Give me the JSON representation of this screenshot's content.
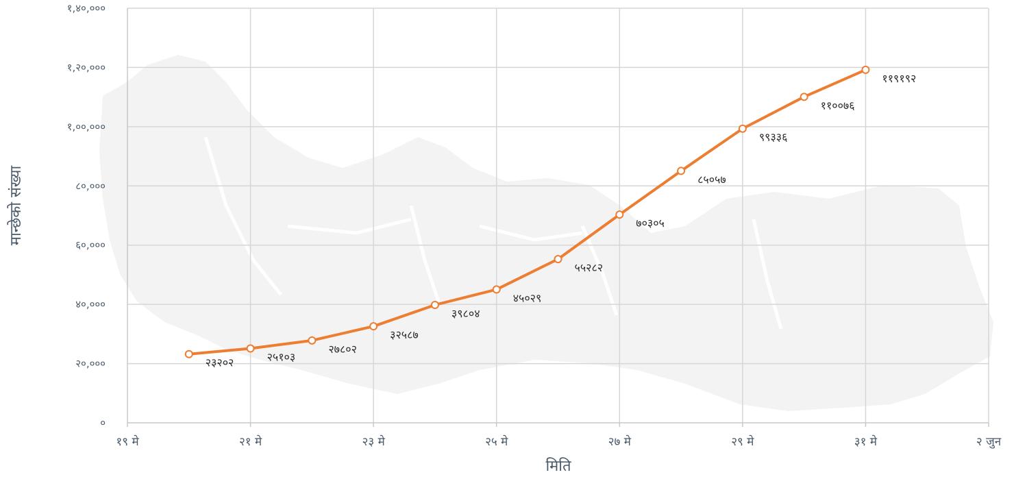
{
  "chart_data": {
    "type": "line",
    "xlabel": "मिति",
    "ylabel": "मान्छेको संख्या",
    "ylim": [
      0,
      140000
    ],
    "y_ticks": [
      0,
      20000,
      40000,
      60000,
      80000,
      100000,
      120000,
      140000
    ],
    "y_tick_labels": [
      "०",
      "२०,०००",
      "४०,०००",
      "६०,०००",
      "८०,०००",
      "१,००,०००",
      "१,२०,०००",
      "१,४०,०००"
    ],
    "x_ticks": [
      "2020-05-19",
      "2020-05-21",
      "2020-05-23",
      "2020-05-25",
      "2020-05-27",
      "2020-05-29",
      "2020-05-31",
      "2020-06-02"
    ],
    "x_tick_labels": [
      "१९ मे",
      "२१ मे",
      "२३ मे",
      "२५ मे",
      "२७ मे",
      "२९ मे",
      "३१ मे",
      "२ जुन"
    ],
    "grid": true,
    "line_color": "#ed7d31",
    "series": [
      {
        "x": [
          "2020-05-20",
          "2020-05-21",
          "2020-05-22",
          "2020-05-23",
          "2020-05-24",
          "2020-05-25",
          "2020-05-26",
          "2020-05-27",
          "2020-05-28",
          "2020-05-29",
          "2020-05-30",
          "2020-05-31"
        ],
        "values": [
          23202,
          25103,
          27802,
          32587,
          39804,
          45029,
          55282,
          70305,
          85057,
          99336,
          110076,
          119192
        ],
        "labels": [
          "२३२०२",
          "२५१०३",
          "२७८०२",
          "३२५८७",
          "३९८०४",
          "४५०२९",
          "५५२८२",
          "७०३०५",
          "८५०५७",
          "९९३३६",
          "११००७६",
          "११९१९२"
        ]
      }
    ]
  }
}
